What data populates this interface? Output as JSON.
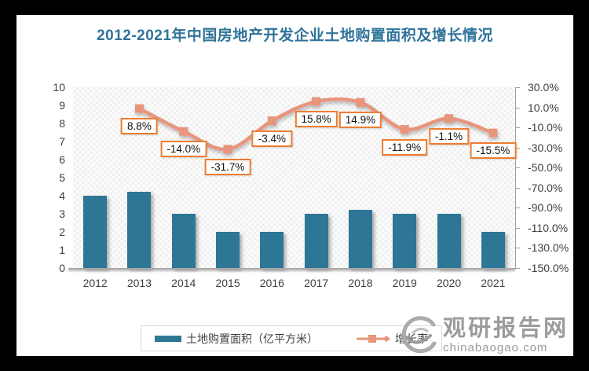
{
  "title": "2012-2021年中国房地产开发企业土地购置面积及增长情况",
  "colors": {
    "title": "#2F7499",
    "bar": "#2D7696",
    "line": "#E8957C",
    "label_border": "#ED7D31",
    "axis_text": "#3F3F3F",
    "watermark": "#9C9C9C"
  },
  "chart_data": {
    "type": "bar+line",
    "title": "2012-2021年中国房地产开发企业土地购置面积及增长情况",
    "categories": [
      "2012",
      "2013",
      "2014",
      "2015",
      "2016",
      "2017",
      "2018",
      "2019",
      "2020",
      "2021"
    ],
    "series": [
      {
        "name": "土地购置面积（亿平方米）",
        "type": "bar",
        "axis": "left",
        "values": [
          4,
          4.2,
          3,
          2,
          2,
          3,
          3.2,
          3,
          3,
          2
        ]
      },
      {
        "name": "增长率",
        "type": "line",
        "axis": "right",
        "values": [
          null,
          8.8,
          -14.0,
          -31.7,
          -3.4,
          15.8,
          14.9,
          -11.9,
          -1.1,
          -15.5
        ],
        "labels": [
          null,
          "8.8%",
          "-14.0%",
          "-31.7%",
          "-3.4%",
          "15.8%",
          "14.9%",
          "-11.9%",
          "-1.1%",
          "-15.5%"
        ]
      }
    ],
    "left_axis": {
      "min": 0,
      "max": 10,
      "ticks": [
        "10",
        "9",
        "8",
        "7",
        "6",
        "5",
        "4",
        "3",
        "2",
        "1",
        "0"
      ]
    },
    "right_axis": {
      "min": -150,
      "max": 30,
      "ticks": [
        "30.0%",
        "10.0%",
        "-10.0%",
        "-30.0%",
        "-50.0%",
        "-70.0%",
        "-90.0%",
        "-110.0%",
        "-130.0%",
        "-150.0%"
      ]
    },
    "legend_position": "bottom",
    "grid": false
  },
  "watermark": {
    "name": "观研报告网",
    "domain": "chinabaogao.com"
  }
}
